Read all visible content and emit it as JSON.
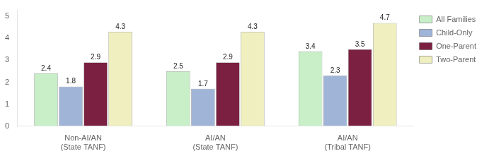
{
  "chart_data": {
    "type": "bar",
    "categories": [
      "Non-AI/AN\n(State TANF)",
      "AI/AN\n(State TANF)",
      "AI/AN\n(Tribal TANF)"
    ],
    "series": [
      {
        "name": "All Families",
        "color": "#c8efc8",
        "values": [
          2.4,
          2.5,
          3.4
        ]
      },
      {
        "name": "Child-Only",
        "color": "#a0b4d8",
        "values": [
          1.8,
          1.7,
          2.3
        ]
      },
      {
        "name": "One-Parent",
        "color": "#7b2040",
        "values": [
          2.9,
          2.9,
          3.5
        ]
      },
      {
        "name": "Two-Parent",
        "color": "#efefc0",
        "values": [
          4.3,
          4.3,
          4.7
        ]
      }
    ],
    "ylim": [
      0,
      5.3
    ],
    "yticks": [
      0,
      1,
      2,
      3,
      4,
      5
    ],
    "grid": false,
    "legend": "right",
    "data_labels": true
  }
}
